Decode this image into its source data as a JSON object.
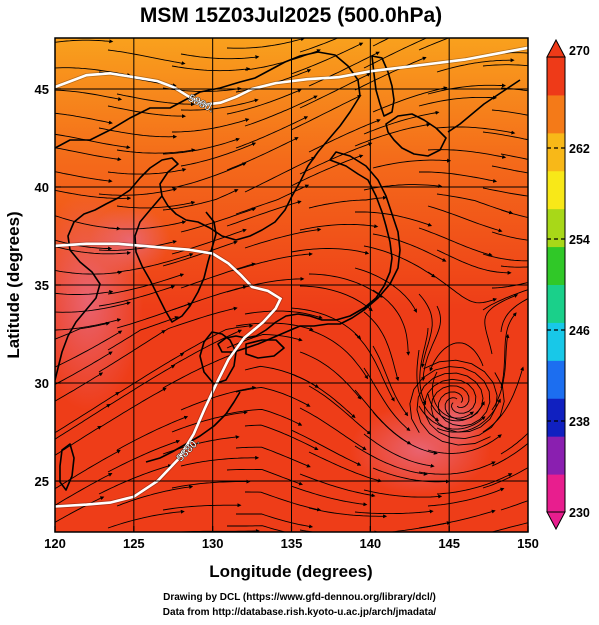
{
  "title": "MSM 15Z03Jul2025 (500.0hPa)",
  "credits": {
    "line1": "Drawing by DCL (https://www.gfd-dennou.org/library/dcl/)",
    "line2": "Data from http://database.rish.kyoto-u.ac.jp/arch/jmadata/"
  },
  "chart_data": {
    "type": "map",
    "xlabel": "Longitude (degrees)",
    "ylabel": "Latitude  (degrees)",
    "xlim": [
      120,
      150
    ],
    "ylim": [
      22.4,
      47.6
    ],
    "x_ticks": [
      120,
      125,
      130,
      135,
      140,
      145,
      150
    ],
    "y_ticks": [
      25,
      30,
      35,
      40,
      45
    ],
    "grid": true,
    "colorbar": {
      "min": 230,
      "max": 270,
      "labels": [
        270,
        262,
        254,
        246,
        238,
        230
      ],
      "colors": [
        "#e81e8e",
        "#8a1fb0",
        "#1020c0",
        "#1c6ef0",
        "#18c8e8",
        "#1ad08a",
        "#30c828",
        "#a8d818",
        "#f8e818",
        "#f8b818",
        "#f47a18",
        "#ee3a18"
      ],
      "extend": "both",
      "placement": "right"
    },
    "field_colors": {
      "north": "#f9a11d",
      "mid": "#f46a1a",
      "south": "#ee3d18",
      "warm_pool": "#e86a80"
    },
    "contours": [
      {
        "label": "5880.",
        "color": "#ffffff",
        "points": [
          [
            120,
            45.1
          ],
          [
            121,
            45.4
          ],
          [
            122,
            45.7
          ],
          [
            123.5,
            45.8
          ],
          [
            125,
            45.6
          ],
          [
            126.5,
            45.4
          ],
          [
            127.5,
            45.1
          ],
          [
            128.5,
            44.6
          ],
          [
            129.5,
            44.2
          ],
          [
            130.5,
            44.3
          ],
          [
            131.5,
            44.6
          ],
          [
            132.5,
            45.0
          ],
          [
            134,
            45.3
          ],
          [
            136,
            45.5
          ],
          [
            138,
            45.6
          ],
          [
            140,
            45.9
          ],
          [
            142,
            46.1
          ],
          [
            144,
            46.3
          ],
          [
            146,
            46.5
          ],
          [
            148,
            46.8
          ],
          [
            150,
            47.1
          ]
        ]
      },
      {
        "label": "5880.",
        "color": "#ffffff",
        "points": [
          [
            120,
            37.0
          ],
          [
            122,
            37.1
          ],
          [
            124,
            37.1
          ],
          [
            125.5,
            37.0
          ],
          [
            127,
            36.9
          ],
          [
            128.5,
            36.8
          ],
          [
            130,
            36.6
          ],
          [
            131,
            36.1
          ],
          [
            131.8,
            35.5
          ],
          [
            132.5,
            34.9
          ],
          [
            133.5,
            34.7
          ],
          [
            134.3,
            34.3
          ],
          [
            134.0,
            33.8
          ],
          [
            133.2,
            33.1
          ],
          [
            132.0,
            32.3
          ],
          [
            131.0,
            31.2
          ],
          [
            130.2,
            29.9
          ],
          [
            129.5,
            28.7
          ],
          [
            128.8,
            27.4
          ],
          [
            127.8,
            26.1
          ],
          [
            126.5,
            25.0
          ],
          [
            125.0,
            24.2
          ],
          [
            123.5,
            23.9
          ],
          [
            122,
            23.8
          ],
          [
            120,
            23.7
          ]
        ]
      }
    ],
    "features": [
      {
        "name": "cyclonic-circulation",
        "lon": 145.5,
        "lat": 29.0
      }
    ],
    "streamlines": "westerly-dominant"
  }
}
